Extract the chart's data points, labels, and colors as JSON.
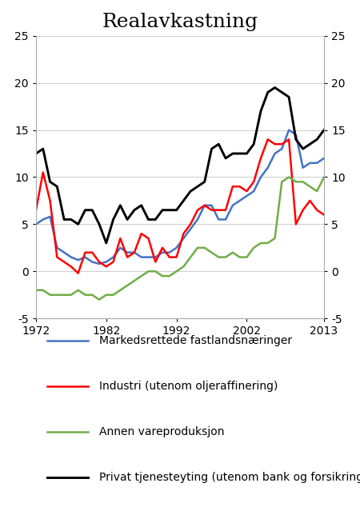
{
  "title": "Realavkastning",
  "xlim": [
    1972,
    2013
  ],
  "ylim": [
    -5,
    25
  ],
  "yticks": [
    -5,
    0,
    5,
    10,
    15,
    20,
    25
  ],
  "xticks": [
    1972,
    1982,
    1992,
    2002,
    2013
  ],
  "legend": [
    "Markedsrettede fastlandsnæringer",
    "Industri (utenom oljeraffinering)",
    "Annen vareproduksjon",
    "Privat tjenesteyting (utenom bank og forsikring)"
  ],
  "colors": [
    "#4472C4",
    "#FF0000",
    "#70AD47",
    "#000000"
  ],
  "years": [
    1972,
    1973,
    1974,
    1975,
    1976,
    1977,
    1978,
    1979,
    1980,
    1981,
    1982,
    1983,
    1984,
    1985,
    1986,
    1987,
    1988,
    1989,
    1990,
    1991,
    1992,
    1993,
    1994,
    1995,
    1996,
    1997,
    1998,
    1999,
    2000,
    2001,
    2002,
    2003,
    2004,
    2005,
    2006,
    2007,
    2008,
    2009,
    2010,
    2011,
    2012,
    2013
  ],
  "blue": [
    5.0,
    5.5,
    5.8,
    2.5,
    2.0,
    1.5,
    1.2,
    1.5,
    1.0,
    0.8,
    1.0,
    1.5,
    2.5,
    2.0,
    2.0,
    1.5,
    1.5,
    1.5,
    2.0,
    2.0,
    2.5,
    3.5,
    4.5,
    5.5,
    7.0,
    7.0,
    5.5,
    5.5,
    7.0,
    7.5,
    8.0,
    8.5,
    10.0,
    11.0,
    12.5,
    13.0,
    15.0,
    14.5,
    11.0,
    11.5,
    11.5,
    12.0
  ],
  "red": [
    6.5,
    10.5,
    7.5,
    1.5,
    1.0,
    0.5,
    -0.2,
    2.0,
    2.0,
    1.0,
    0.5,
    1.0,
    3.5,
    1.5,
    2.0,
    4.0,
    3.5,
    1.0,
    2.5,
    1.5,
    1.5,
    4.0,
    5.0,
    6.5,
    7.0,
    6.5,
    6.5,
    6.5,
    9.0,
    9.0,
    8.5,
    9.5,
    12.0,
    14.0,
    13.5,
    13.5,
    14.0,
    5.0,
    6.5,
    7.5,
    6.5,
    6.0
  ],
  "green": [
    -2.0,
    -2.0,
    -2.5,
    -2.5,
    -2.5,
    -2.5,
    -2.0,
    -2.5,
    -2.5,
    -3.0,
    -2.5,
    -2.5,
    -2.0,
    -1.5,
    -1.0,
    -0.5,
    0.0,
    0.0,
    -0.5,
    -0.5,
    0.0,
    0.5,
    1.5,
    2.5,
    2.5,
    2.0,
    1.5,
    1.5,
    2.0,
    1.5,
    1.5,
    2.5,
    3.0,
    3.0,
    3.5,
    9.5,
    10.0,
    9.5,
    9.5,
    9.0,
    8.5,
    10.0
  ],
  "black": [
    12.5,
    13.0,
    9.5,
    9.0,
    5.5,
    5.5,
    5.0,
    6.5,
    6.5,
    5.0,
    3.0,
    5.5,
    7.0,
    5.5,
    6.5,
    7.0,
    5.5,
    5.5,
    6.5,
    6.5,
    6.5,
    7.5,
    8.5,
    9.0,
    9.5,
    13.0,
    13.5,
    12.0,
    12.5,
    12.5,
    12.5,
    13.5,
    17.0,
    19.0,
    19.5,
    19.0,
    18.5,
    14.0,
    13.0,
    13.5,
    14.0,
    15.0
  ],
  "title_fontsize": 18,
  "tick_fontsize": 10,
  "legend_fontsize": 10,
  "linewidth": 1.8
}
